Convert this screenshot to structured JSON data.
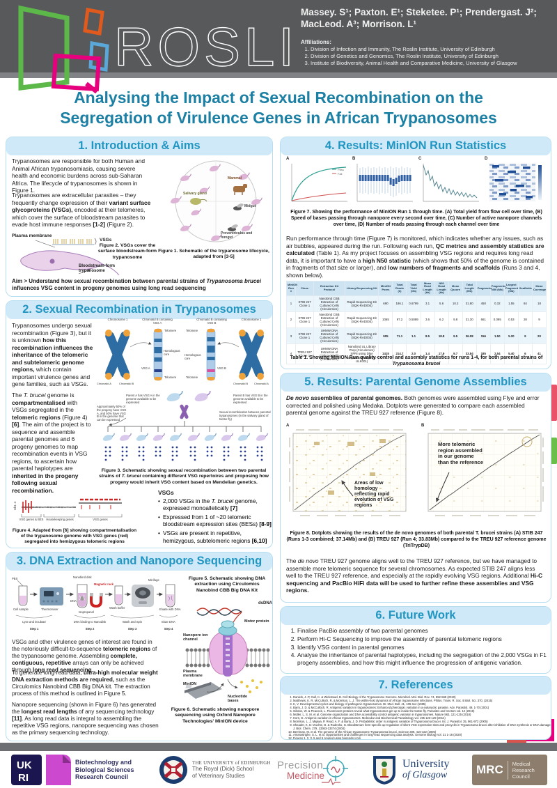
{
  "colors": {
    "accent_teal": "#1C7FA4",
    "section_header_bg": "#CFE9F8",
    "section_header_text": "#2196C2",
    "header_gray": "#58595B",
    "roslin_green": "#5CB848",
    "roslin_orange": "#E05A1E",
    "roslin_blue": "#5AA7D8",
    "roslin_magenta": "#E6007E"
  },
  "header": {
    "logo_text": "ROSLIN",
    "authors_line1": "Massey. S¹; Paxton. E¹; Steketee. P¹; Prendergast. J²;",
    "authors_line2": "MacLeod. A³; Morrison. L¹",
    "affiliations_title": "Affiliations:",
    "affiliations": [
      "Division of Infection and Immunity, The Roslin Institute, University of Edinburgh",
      "Division of Genetics and Genomics, The Roslin Institute, University of Edinburgh",
      "Institute of Biodiversity, Animal Health and Comparative Medicine, University of Glasgow"
    ]
  },
  "title": "Analysing the Impact of Sexual Recombination on the Segregation of Virulence Genes in African Trypanosomes",
  "s1": {
    "heading": "1. Introduction & Aims",
    "p1": "Trypanosomes are responsible for both Human and Animal African trypanosomiasis, causing severe health and economic burdens across sub-Saharan Africa. The lifecycle of trypanosomes is shown in Figure 1.",
    "p2": [
      {
        "t": "Trypanosomes are extracellular parasites – they frequently change expression of their "
      },
      {
        "t": "variant surface glycoproteins (VSGs),",
        "b": 1
      },
      {
        "t": " encoded at their telomeres, which cover the surface of bloodstream parasites to evade host immune responses "
      },
      {
        "t": "[1-2]",
        "b": 1
      },
      {
        "t": " (Figure 2)."
      }
    ],
    "aim": [
      {
        "t": "Aim > Understand how sexual recombination between parental strains of ",
        "b": 1
      },
      {
        "t": "Trypanosoma brucei",
        "b": 1,
        "i": 1
      },
      {
        "t": " influences VSG content in progeny genomes using long read sequencing",
        "b": 1
      }
    ],
    "fig1_caption": "Figure 1. Schematic of the trypanosome lifecycle, adapted from [3-5]",
    "fig1_labels": {
      "mammal": "Mammal",
      "midgut": "Midgut",
      "salivary": "Salivary gland",
      "proventriculus": "Proventriculus and foregut"
    },
    "fig2_caption": "Figure 2. VSGs cover the surface bloodstream-form trypanosome",
    "fig2_labels": {
      "plasma": "Plasma membrane",
      "vsgs": "VSGs",
      "bloodstream": "Bloodstream-form trypanosome"
    }
  },
  "s2": {
    "heading": "2. Sexual Recombination in Trypanosomes",
    "p1": [
      {
        "t": "Trypanosomes undergo sexual recombination (Figure 3), but it is unknown "
      },
      {
        "t": "how this recombination influences the inheritance of the telomeric and subtelomeric genome regions,",
        "b": 1
      },
      {
        "t": " which contain important virulence genes and gene families, such as VSGs."
      }
    ],
    "p2": [
      {
        "t": "The "
      },
      {
        "t": "T. brucei",
        "i": 1
      },
      {
        "t": " genome is "
      },
      {
        "t": "compartmentalised",
        "b": 1
      },
      {
        "t": " with VSGs segregated in the "
      },
      {
        "t": "telomeric regions",
        "b": 1
      },
      {
        "t": " (Figure 4) "
      },
      {
        "t": "[6]",
        "b": 1
      },
      {
        "t": ". The aim of the project is to sequence and assemble parental genomes and 6 progeny genomes to map recombination events in VSG regions, to ascertain how parental haplotypes are "
      },
      {
        "t": "inherited in the progeny following sexual recombination.",
        "b": 1
      }
    ],
    "fig3_caption": [
      {
        "t": "Figure 3. Schematic showing sexual recombination between two parental strains of ",
        "b": 1
      },
      {
        "t": "T. brucei",
        "b": 1,
        "i": 1
      },
      {
        "t": " containing different VSG repertoires and proposing how progeny would inherit VSG content based on Mendelian genetics.",
        "b": 1
      }
    ],
    "fig3_labels": {
      "chr1_left": "Chromosome 1",
      "chromatid_vsga": "Chromatid B containing VSG A",
      "chromatid_vsgb": "Chromatid B containing VSG B",
      "chr1_right": "Chromosome 1",
      "telomere": "Telomere",
      "homologous": "Homologous core",
      "vsga": "VSG A",
      "vsgb": "VSG B",
      "chromatid_a": "Chromatid A",
      "chromatid_b": "Chromatid B",
      "parent_a": "Parent A has VSG A in the genome available to be expressed",
      "parent_b": "Parent B has VSG B in the genome available to be expressed",
      "cross": "Sexual recombination between parental trypanosomes (in the salivary gland of tsetse fly)",
      "progeny": "Approximately 50% of the progeny have VSG A, and 50% have VSG B in the genome that can be expressed"
    },
    "fig4_caption": "Figure 4. Adapted from [6] showing compartmentalisation of the trypanosome genome with VSG genes (red) segregated into hemizygous telomeric regions",
    "fig4_labels": {
      "axis": "Chr. 4",
      "left": "VSG genes & BES",
      "mid": "Housekeeping genes",
      "right": "VSG genes"
    },
    "vsg_heading": "VSGs",
    "bullet1": [
      {
        "t": "2,000 VSGs in the "
      },
      {
        "t": "T. brucei",
        "i": 1
      },
      {
        "t": " genome, expressed monoallelically "
      },
      {
        "t": "[7]",
        "b": 1
      }
    ],
    "bullet2": [
      {
        "t": "Expressed from 1 of ~20 telomeric bloodstream expression sites (BESs) "
      },
      {
        "t": "[8-9]",
        "b": 1
      }
    ],
    "bullet3": [
      {
        "t": "VSGs are present in repetitive, hemizygous, subtelomeric regions "
      },
      {
        "t": "[6,10]",
        "b": 1
      }
    ]
  },
  "s3": {
    "heading": "3. DNA Extraction and Nanopore Sequencing",
    "p1": [
      {
        "t": "VSGs and other virulence genes of interest are found in the notoriously difficult-to-sequence "
      },
      {
        "t": "telomeric regions",
        "b": 1
      },
      {
        "t": " of the trypanosome genome. Assembling "
      },
      {
        "t": "complete, contiguous, repetitive",
        "b": 1
      },
      {
        "t": " arrays can only be achieved through "
      },
      {
        "t": "long read sequencing",
        "b": 1
      },
      {
        "t": "."
      }
    ],
    "p2": [
      {
        "t": "To generate long-read data, "
      },
      {
        "t": "ultra-high molecular weight DNA extraction methods are required,",
        "b": 1
      },
      {
        "t": " such as the Circulomics Nanobind CBB Big DNA kit. The extraction process of this method is outlined in Figure 5."
      }
    ],
    "p3": [
      {
        "t": "Nanopore sequencing (shown in Figure 6) has generated the "
      },
      {
        "t": "longest read lengths",
        "b": 1
      },
      {
        "t": " of any sequencing technology "
      },
      {
        "t": "[11]",
        "b": 1
      },
      {
        "t": ". As long read data is integral to assembling the repetitive VSG regions, nanopore sequencing was chosen as the primary sequencing technology."
      }
    ],
    "fig5_caption": "Figure 5. Schematic showing DNA extraction using Circulomics Nanobind CBB Big DNA Kit",
    "fig5_labels": {
      "pbs": "PBS",
      "cell": "Cell sample",
      "thermo": "Thermomixer",
      "nanodisk": "Nanobind disk",
      "dna": "DNA",
      "iso": "Isopropanol",
      "magnet": "Magnetic rack",
      "wash": "Wash buffer",
      "minifuge": "Minifuge",
      "eluate": "Eluate with DNA",
      "s1a": "Lyse and incubate",
      "s1b": "Step 1",
      "s2a": "DNA binding to Nanodisk",
      "s2b": "Step 2",
      "s3a": "Wash and Spin",
      "s3b": "Step 3",
      "s4a": "Elute DNA",
      "s4b": "Step 4"
    },
    "fig6_caption": "Figure 6. Schematic showing nanopore sequencing using Oxford Nanopore Technologies' MinION device",
    "fig6_labels": {
      "dsdna": "dsDNA",
      "motor": "Motor protein",
      "channel": "Nanopore ion channel",
      "membrane": "Plasma membrane",
      "minion": "MinION",
      "bases": "Nucleotide bases"
    }
  },
  "s4": {
    "heading": "4. Results: MinION Run Statistics",
    "panels": {
      "a": "A",
      "b": "B",
      "c": "C",
      "d": "D"
    },
    "legend": {
      "pass": "Pass",
      "fail": "Fail"
    },
    "fig7_caption": "Figure 7. Showing the performance of MinION Run 1 through time. (A) Total yield from flow cell over time, (B) Speed of bases passing through nanopore every second over time, (C) Number of active nanopore channels over time, (D) Number of reads passing through each channel over time",
    "para": [
      {
        "t": "Run performance through time (Figure 7) is monitored, which indicates whether any issues, such as air bubbles, appeared during the run. Following each run, "
      },
      {
        "t": "QC metrics and assembly statistics are calculated",
        "b": 1
      },
      {
        "t": " (Table 1). As my project focuses on assembling VSG regions and requires long read data, it is important to have a "
      },
      {
        "t": "high N50 statistic",
        "b": 1
      },
      {
        "t": " (which shows that 50% of the genome is contained in fragments of that size or larger), and "
      },
      {
        "t": "low numbers of fragments and scaffolds",
        "b": 1
      },
      {
        "t": " (Runs 3 and 4, shown below)."
      }
    ],
    "table": {
      "headers": [
        "MinION Run #",
        "Clone",
        "Extraction Kit Protocol",
        "Library/Sequencing Kit",
        "MinION Pores",
        "Total Reads (k)",
        "Total Yield (Gb)",
        "Mean Read Length (kb)",
        "N50 Read Length (kb)",
        "Mean Qscore",
        "Total Length (Mb)",
        "Fragments",
        "Fragments N50 (Mb)",
        "Largest Fragment (Mb)",
        "Scaffolds",
        "Mean Coverage"
      ],
      "rows": [
        [
          "1",
          "STIB 247 Clone 1",
          "Nanobind CBB Extraction of Cultured Cells (Circulomics)",
          "Rapid Sequencing Kit (SQK-RAD004)",
          "690",
          "186.1",
          "0.6799",
          "3.1",
          "5.6",
          "10.2",
          "31.80",
          "450",
          "0.32",
          "1.55",
          "84",
          "18"
        ],
        [
          "2",
          "STIB 247 Clone 1",
          "Nanobind CBB Extraction of Cultured Cells (Circulomics)",
          "Rapid Sequencing Kit (SQK-RAD004)",
          "1065",
          "97.2",
          "0.5089",
          "3.6",
          "6.2",
          "9.8",
          "31.30",
          "661",
          "0.095",
          "0.53",
          "28",
          "9"
        ],
        [
          "3",
          "STIB 247 Clone 1",
          "UHMW DNA Extraction of Cultured Cells (Circulomics)",
          "Rapid Sequencing Kit (SQK-RAD004)",
          "905",
          "71.1",
          "1.1",
          "8.5",
          "18.8",
          "9.5",
          "36.08",
          "156",
          "1.50",
          "5.20",
          "9",
          "20"
        ],
        [
          "4",
          "TREU 927 Clone 1",
          "UHMW DNA Extraction of Cultured Cells (Circulomics)",
          "Nanobind UL Library Prep (Circulomics) SPRI using DNA Sequencing Kit (SQK-ULK001)",
          "1415",
          "214.7",
          "2.0",
          "1.4",
          "17.9",
          "9.7",
          "33.84",
          "185",
          "2.54",
          "5.40",
          "6",
          "41"
        ]
      ]
    },
    "table_caption": [
      {
        "t": "Table 1. Showing MinION Run quality control and assembly statistics for runs 1-4, for both parental strains of ",
        "b": 1
      },
      {
        "t": "Trypanosoma brucei",
        "b": 1,
        "i": 1
      }
    ]
  },
  "s5": {
    "heading": "5. Results: Parental Genome Assemblies",
    "panels": {
      "a": "A",
      "b": "B"
    },
    "p1": [
      {
        "t": "De novo",
        "b": 1,
        "i": 1
      },
      {
        "t": " assemblies of parental genomes.",
        "b": 1
      },
      {
        "t": " Both genomes were assembled using Flye and error corrected and polished using Medaka. Dotplots were generated to compare each assembled parental genome against the TREU 927 reference (Figure 8)."
      }
    ],
    "annotation_a": "Areas of low homology reflecting rapid evolution of VSG regions",
    "annotation_b": "More telomeric region assembled in our genome than the reference",
    "fig8_caption": "Figure 8. Dotplots showing the results of the de novo genomes of both parental T. brucei strains (A) STIB 247 (Runs 1-3 combined; 37.14Mb) and (B) TREU 927 (Run 4; 33.83Mb) compared to the TREU 927 reference genome (TriTrypDB)",
    "p2": [
      {
        "t": "The "
      },
      {
        "t": "de novo",
        "i": 1
      },
      {
        "t": " TREU 927 genome aligns well to the TREU 927 reference, but we have managed to assemble more telomeric sequence for several chromosomes. As expected STIB 247 aligns less well to the TREU 927 reference, and especially at the rapidly evolving VSG regions. Additional "
      },
      {
        "t": "Hi-C sequencing and PacBio HiFi data will be used to further refine these assemblies and VSG regions.",
        "b": 1
      }
    ]
  },
  "s6": {
    "heading": "6. Future Work",
    "items": [
      "Finalise PacBio assembly of two parental genomes",
      "Perform Hi-C Sequencing to improve the assembly of parental telomeric regions",
      "Identify VSG content in parental genomes",
      "Analyse the inheritance of parental haplotypes, including the segregation of the 2,000 VSGs in F1 progeny assemblies, and how this might influence the progression of antigenic variation."
    ]
  },
  "s7": {
    "heading": "7. References",
    "refs": [
      "Daniels, J.-P, Gull, K. & Wickstead, B. Cell Biology of the Trypanosome Genome. Microbiol. Mol. Biol. Rev. 74, 552-569 (2010)",
      "Matthews, K. R, McCulloch, R. & Morrison, L. J. The within-host dynamics of African trypanosome infections. Philos. Trans. R. Soc. B Biol. Sci. 370, (2015)",
      "K, V. Developmental cycles and biology of pathogenic trypanosomes. Br. Med. Bull. 41, 105-114 (1985)",
      "Barry, J. D. & McCulloch, R. Antigenic variation in trypanosomes: Enhanced phenotypic variation in a eukaryotic parasite. Adv. Parasitol. 49, 1-70 (2001)",
      "Gibson, W. & Peacock, L. Fluorescent proteins reveal what trypanosomes get up to inside the tsetse fly. Parasites and Vectors vol. 12 (2019)",
      "Müller, L. S. M. et al. Genome organization and DNA accessibility control antigenic variation in trypanosomes. Nature 563, 121-125 (2018)",
      "Horn, D. Antigenic variation in African trypanosomes. Molecular and Biochemical Parasitology vol. 195 123-129 (2014)",
      "Morrison, L. J, Majiwa, P, Read, A. F. & Barry, J. D. Probabilistic order in antigenic variation of Trypanosoma brucei. Int. J. Parasitol. 35, 961-972 (2005)",
      "Sheader, K, te Vruchte, D. & Rudenko, G. Bloodstream form-specific up-regulation of silent VSG expression sites and procyclin in Trypanosoma brucei after inhibition of DNA synthesis or DNA damage. J. Biol. Chem. 279, 13363-13374 (2004)",
      "Berriman, M. et al. The genome of the African trypanosome Trypanosoma brucei. Science 309, 416-422 (2005)",
      "Amarasinghe, S. L. et al. Opportunities and challenges in long-read sequencing data analysis. Genome Biology vol. 21 1-16 (2020)",
      "Figures 1, 2, 3, 5 and 6 created using biorender.com"
    ]
  },
  "footer": {
    "bbsrc_lines": [
      "Biotechnology and",
      "Biological Sciences",
      "Research Council"
    ],
    "ukri_top": "UK",
    "ukri_bottom": "RI",
    "uoe_line1": "THE UNIVERSITY of EDINBURGH",
    "uoe_line2a": "The Royal (Dick) School",
    "uoe_line2b": "of Veterinary Studies",
    "pm_word1": "Precision",
    "pm_word2": "Medicine",
    "gla_line1": "University",
    "gla_line2": "of Glasgow",
    "mrc": "MRC",
    "mrc_lines": [
      "Medical",
      "Research",
      "Council"
    ]
  }
}
